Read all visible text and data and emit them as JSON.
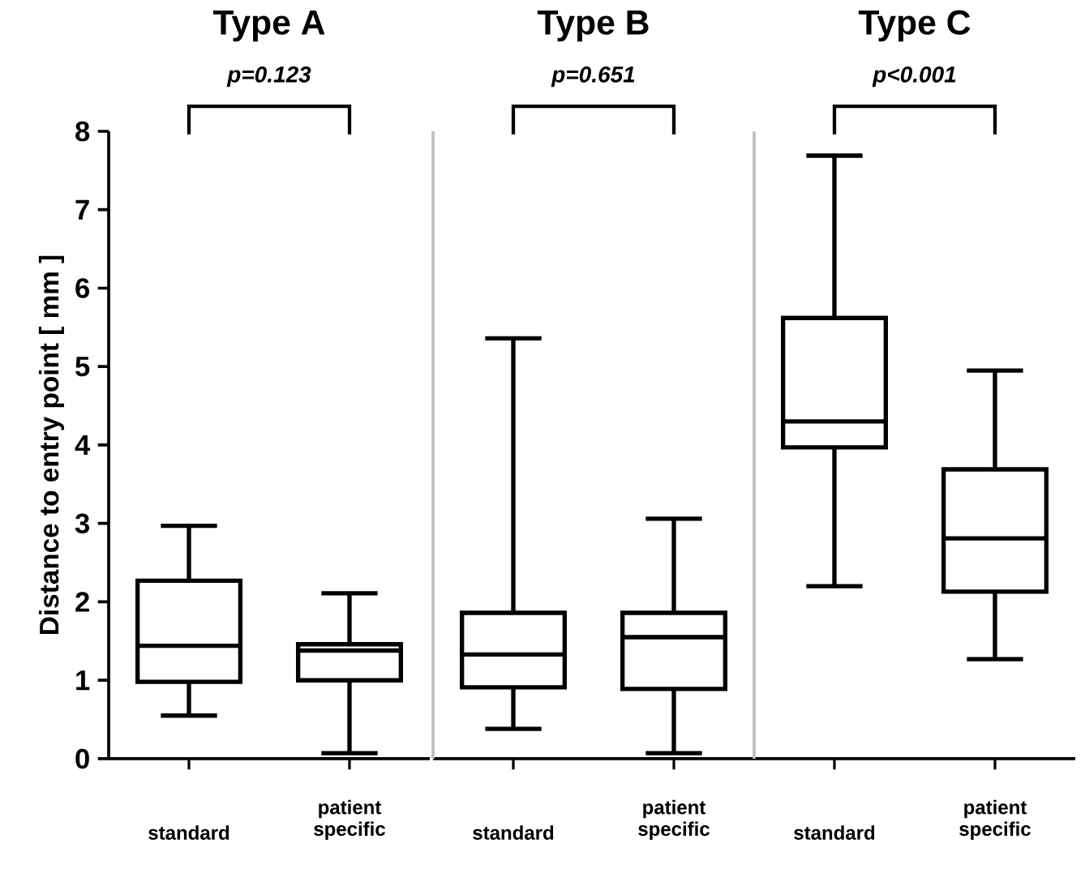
{
  "chart_data": [
    {
      "type": "box",
      "title": "Type A",
      "ylabel": "Distance to entry point [ mm ]",
      "categories": [
        "standard",
        "patient specific"
      ],
      "boxes": [
        {
          "low": 0.55,
          "q1": 0.98,
          "median": 1.44,
          "q3": 2.27,
          "high": 2.97
        },
        {
          "low": 0.07,
          "q1": 1.0,
          "median": 1.38,
          "q3": 1.46,
          "high": 2.11
        }
      ],
      "annotations": [
        "p=0.123"
      ],
      "ylim": [
        0,
        8
      ],
      "yticks": [
        0,
        1,
        2,
        3,
        4,
        5,
        6,
        7,
        8
      ]
    },
    {
      "type": "box",
      "title": "Type B",
      "categories": [
        "standard",
        "patient specific"
      ],
      "boxes": [
        {
          "low": 0.38,
          "q1": 0.91,
          "median": 1.33,
          "q3": 1.86,
          "high": 5.36
        },
        {
          "low": 0.07,
          "q1": 0.89,
          "median": 1.55,
          "q3": 1.86,
          "high": 3.06
        }
      ],
      "annotations": [
        "p=0.651"
      ],
      "ylim": [
        0,
        8
      ],
      "yticks": [
        0,
        1,
        2,
        3,
        4,
        5,
        6,
        7,
        8
      ],
      "tick_labels": "x"
    },
    {
      "type": "box",
      "title": "Type C",
      "categories": [
        "standard",
        "patient specific"
      ],
      "boxes": [
        {
          "low": 2.2,
          "q1": 3.97,
          "median": 4.3,
          "q3": 5.62,
          "high": 7.69
        },
        {
          "low": 1.27,
          "q1": 2.13,
          "median": 2.81,
          "q3": 3.69,
          "high": 4.95
        }
      ],
      "annotations": [
        "p<0.001"
      ],
      "ylim": [
        0,
        8
      ],
      "yticks": [
        0,
        1,
        2,
        3,
        4,
        5,
        6,
        7,
        8
      ],
      "tick_labels": "x"
    }
  ]
}
